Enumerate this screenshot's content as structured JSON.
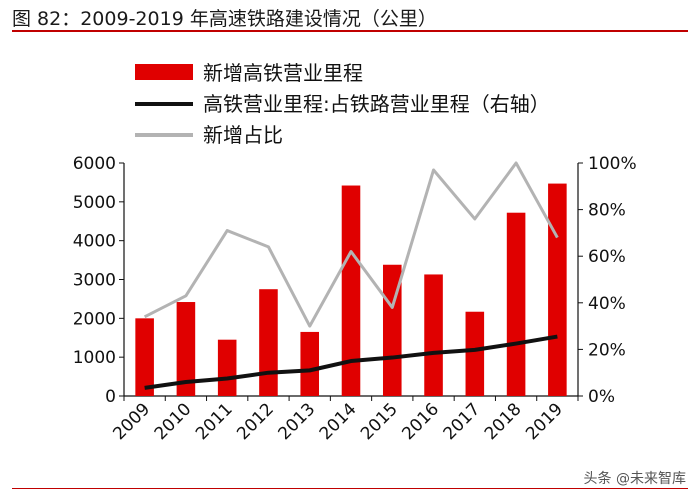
{
  "page": {
    "title": "图 82：2009-2019 年高速铁路建设情况（公里）",
    "watermark": "头条 @未来智库"
  },
  "colors": {
    "bar": "#e00000",
    "line_mileage": "#111111",
    "line_share": "#b3b3b3",
    "rule": "#c00000"
  },
  "chart_data": {
    "type": "bar",
    "title": "",
    "categories": [
      "2009",
      "2010",
      "2011",
      "2012",
      "2013",
      "2014",
      "2015",
      "2016",
      "2017",
      "2018",
      "2019"
    ],
    "series": [
      {
        "name": "新增高铁营业里程",
        "type": "bar",
        "axis": "left",
        "values": [
          2000,
          2420,
          1450,
          2750,
          1650,
          5420,
          3380,
          3130,
          2170,
          4720,
          5470
        ]
      },
      {
        "name": "高铁营业里程:占铁路营业里程（右轴）",
        "type": "line",
        "axis": "right",
        "values": [
          3.5,
          6,
          7.5,
          10,
          11,
          15,
          16.5,
          18.5,
          19.8,
          22.5,
          25.5
        ]
      },
      {
        "name": "新增占比",
        "type": "line",
        "axis": "right",
        "values": [
          34,
          43,
          71,
          64,
          30,
          62,
          38,
          97,
          76,
          100,
          68
        ]
      }
    ],
    "y_left": {
      "min": 0,
      "max": 6000,
      "ticks": [
        "0",
        "1000",
        "2000",
        "3000",
        "4000",
        "5000",
        "6000"
      ]
    },
    "y_right": {
      "min": 0,
      "max": 100,
      "ticks": [
        "0%",
        "20%",
        "40%",
        "60%",
        "80%",
        "100%"
      ]
    },
    "legend_position": "top-left",
    "grid": false
  }
}
